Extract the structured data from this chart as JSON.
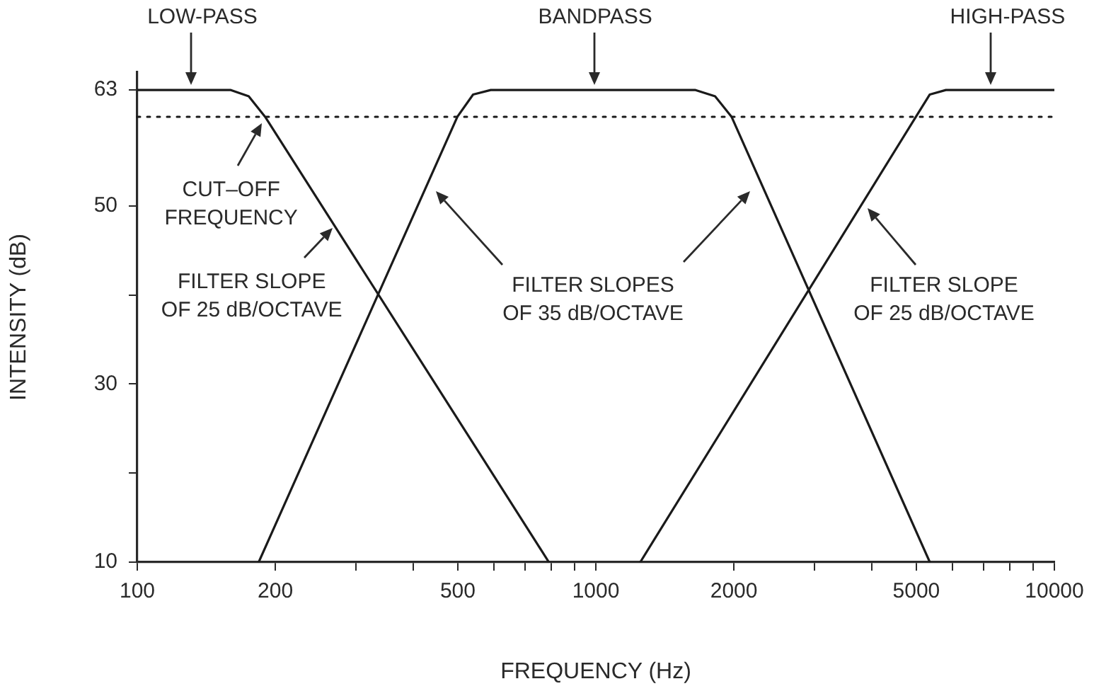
{
  "chart_data": {
    "type": "line",
    "xlabel": "FREQUENCY (Hz)",
    "ylabel": "INTENSITY (dB)",
    "log": "x",
    "grid": false,
    "legend": false,
    "marker": "none",
    "line_style": "solid",
    "xlim": [
      100,
      10000
    ],
    "xticks": [
      100,
      200,
      {
        "value": 300,
        "label": null
      },
      {
        "value": 400,
        "label": null
      },
      500,
      {
        "value": 600,
        "label": null
      },
      {
        "value": 700,
        "label": null
      },
      {
        "value": 800,
        "label": null
      },
      {
        "value": 900,
        "label": null
      },
      1000,
      2000,
      {
        "value": 3000,
        "label": null
      },
      {
        "value": 4000,
        "label": null
      },
      5000,
      {
        "value": 6000,
        "label": null
      },
      {
        "value": 7000,
        "label": null
      },
      {
        "value": 8000,
        "label": null
      },
      {
        "value": 9000,
        "label": null
      },
      10000
    ],
    "ylim": [
      10,
      65
    ],
    "yticks": [
      10,
      {
        "value": 20,
        "label": null
      },
      30,
      {
        "value": 40,
        "label": null
      },
      50,
      63
    ],
    "series": [
      {
        "color": "#1a1a1a",
        "x": [
          100,
          160,
          175,
          190,
          790
        ],
        "values": [
          63,
          63,
          62.3,
          60,
          10
        ]
      },
      {
        "color": "#1a1a1a",
        "x": [
          184,
          499,
          540,
          590,
          1650,
          1820,
          1977,
          5350
        ],
        "values": [
          10,
          60,
          62.5,
          63,
          63,
          62.3,
          60,
          10
        ]
      },
      {
        "color": "#1a1a1a",
        "x": [
          1250,
          4990,
          5350,
          5800,
          10000
        ],
        "values": [
          10,
          60,
          62.5,
          63,
          63
        ]
      }
    ],
    "ref_lines": [
      {
        "axis": "y",
        "value": 60,
        "color": "#1a1a1a",
        "line_style": "dotted"
      }
    ],
    "annotations": [
      {
        "text": "LOW-PASS",
        "x": 131,
        "y": 63
      },
      {
        "text": "BANDPASS",
        "x": 990,
        "y": 63
      },
      {
        "text": "HIGH-PASS",
        "x": 7260,
        "y": 63
      },
      {
        "text": "CUT–OFF\nFREQUENCY",
        "x": 190,
        "y": 60
      },
      {
        "text": "FILTER SLOPE\nOF 25 dB/OCTAVE",
        "x": 274,
        "y": 47
      },
      "FILTER SLOPES\nOF 35 dB/OCTAVE",
      "FILTER SLOPE\nOF 25 dB/OCTAVE"
    ]
  }
}
